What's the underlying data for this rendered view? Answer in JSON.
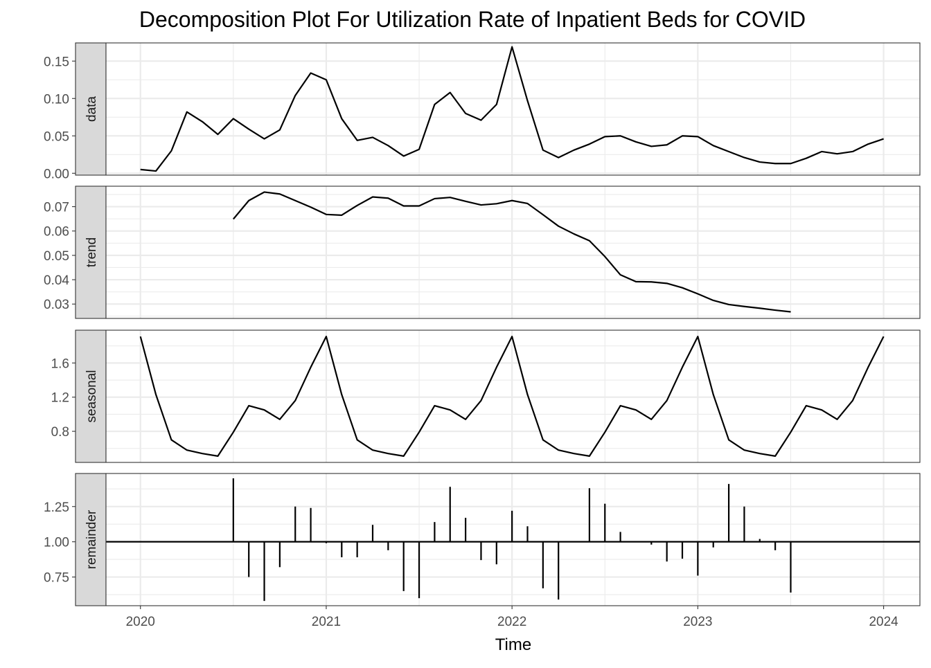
{
  "chart_data": {
    "type": "line",
    "title": "Decomposition Plot For Utilization Rate of Inpatient Beds for COVID",
    "xlabel": "Time",
    "xlim": [
      2019.8146,
      2024.1954
    ],
    "x_breaks": [
      2020,
      2021,
      2022,
      2023,
      2024
    ],
    "x_tick_labels": [
      "2020",
      "2021",
      "2022",
      "2023",
      "2024"
    ],
    "x_start": 2020.0,
    "frequency": 12,
    "grid": true,
    "legend": "none",
    "colors": {
      "strip_bg": "#d9d9d9",
      "grid": "#ebebeb",
      "line": "#000000",
      "panel_border": "#333333"
    },
    "panels": [
      {
        "name": "data",
        "style": "line",
        "ylim": [
          -0.0025,
          0.1743
        ],
        "y_breaks": [
          0.0,
          0.05,
          0.1,
          0.15
        ],
        "y_tick_labels": [
          "0.00",
          "0.05",
          "0.10",
          "0.15"
        ],
        "values": [
          0.005,
          0.003,
          0.03,
          0.082,
          0.069,
          0.052,
          0.073,
          0.059,
          0.046,
          0.058,
          0.104,
          0.134,
          0.125,
          0.073,
          0.044,
          0.048,
          0.037,
          0.023,
          0.032,
          0.092,
          0.108,
          0.08,
          0.071,
          0.092,
          0.169,
          0.097,
          0.031,
          0.021,
          0.031,
          0.039,
          0.049,
          0.05,
          0.042,
          0.036,
          0.038,
          0.05,
          0.049,
          0.037,
          0.029,
          0.021,
          0.015,
          0.013,
          0.013,
          0.02,
          0.029,
          0.026,
          0.029,
          0.039,
          0.046
        ]
      },
      {
        "name": "trend",
        "style": "line",
        "ylim": [
          0.0241,
          0.0784
        ],
        "y_breaks": [
          0.03,
          0.04,
          0.05,
          0.06,
          0.07
        ],
        "y_tick_labels": [
          "0.03",
          "0.04",
          "0.05",
          "0.06",
          "0.07"
        ],
        "values": [
          null,
          null,
          null,
          null,
          null,
          null,
          0.0649,
          0.0725,
          0.076,
          0.0752,
          0.0725,
          0.0698,
          0.0668,
          0.0665,
          0.0705,
          0.074,
          0.0735,
          0.0703,
          0.0703,
          0.0733,
          0.0738,
          0.0722,
          0.0707,
          0.0712,
          0.0725,
          0.0713,
          0.0667,
          0.062,
          0.0588,
          0.056,
          0.0495,
          0.042,
          0.0392,
          0.0391,
          0.0385,
          0.0367,
          0.0342,
          0.0315,
          0.0298,
          0.029,
          0.0283,
          0.0275,
          0.0268,
          null,
          null,
          null,
          null,
          null,
          null
        ]
      },
      {
        "name": "seasonal",
        "style": "line",
        "ylim": [
          0.436,
          1.984
        ],
        "y_breaks": [
          0.8,
          1.2,
          1.6
        ],
        "y_tick_labels": [
          "0.8",
          "1.2",
          "1.6"
        ],
        "values": [
          1.91,
          1.23,
          0.7,
          0.58,
          0.54,
          0.51,
          0.79,
          1.1,
          1.05,
          0.94,
          1.16,
          1.55,
          1.91,
          1.23,
          0.7,
          0.58,
          0.54,
          0.51,
          0.79,
          1.1,
          1.05,
          0.94,
          1.16,
          1.55,
          1.91,
          1.23,
          0.7,
          0.58,
          0.54,
          0.51,
          0.79,
          1.1,
          1.05,
          0.94,
          1.16,
          1.55,
          1.91,
          1.23,
          0.7,
          0.58,
          0.54,
          0.51,
          0.79,
          1.1,
          1.05,
          0.94,
          1.16,
          1.55,
          1.91
        ]
      },
      {
        "name": "remainder",
        "style": "bar",
        "baseline": 1.0,
        "ylim": [
          0.5465,
          1.4845
        ],
        "y_breaks": [
          0.75,
          1.0,
          1.25
        ],
        "y_tick_labels": [
          "0.75",
          "1.00",
          "1.25"
        ],
        "values": [
          null,
          null,
          null,
          null,
          null,
          null,
          1.45,
          0.75,
          0.58,
          0.82,
          1.25,
          1.24,
          0.99,
          0.89,
          0.89,
          1.12,
          0.94,
          0.65,
          0.6,
          1.14,
          1.39,
          1.17,
          0.87,
          0.84,
          1.22,
          1.11,
          0.67,
          0.59,
          1.0,
          1.38,
          1.27,
          1.07,
          1.0,
          0.98,
          0.86,
          0.88,
          0.76,
          0.96,
          1.41,
          1.25,
          1.02,
          0.94,
          0.64,
          null,
          null,
          null,
          null,
          null,
          null
        ]
      }
    ]
  }
}
